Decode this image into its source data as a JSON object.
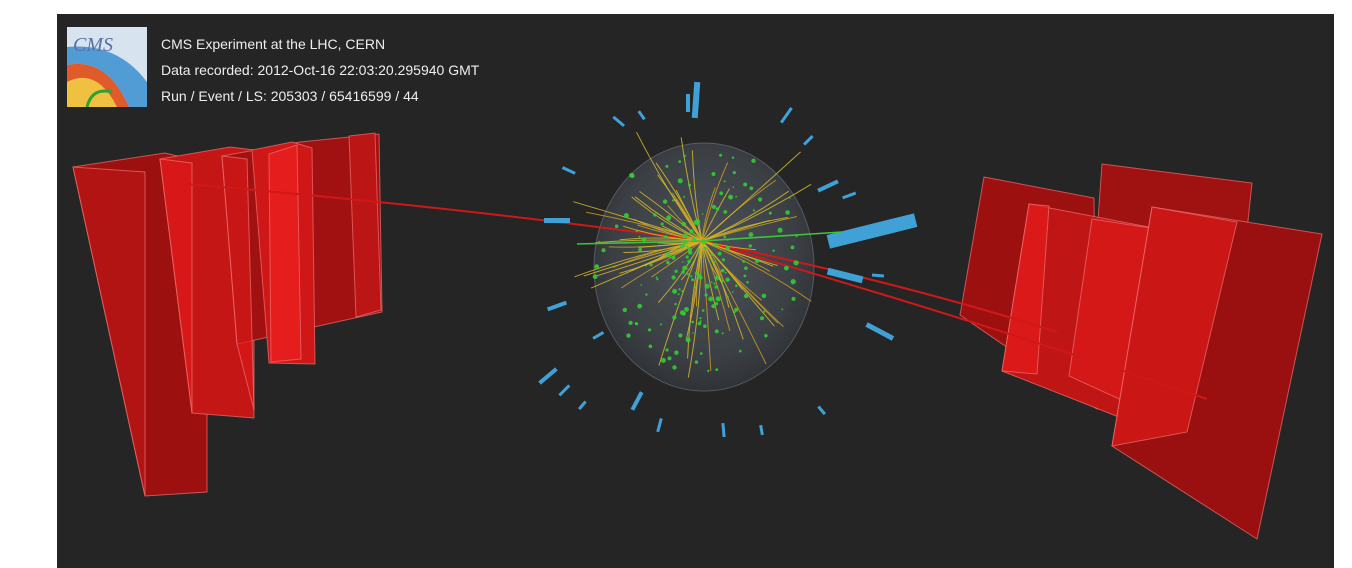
{
  "header": {
    "line1": "CMS Experiment at the LHC, CERN",
    "line2": "Data recorded: 2012-Oct-16 22:03:20.295940 GMT",
    "line3": "Run / Event / LS: 205303 / 65416599 / 44"
  },
  "logo": {
    "text": "CMS"
  },
  "colors": {
    "background": "#252525",
    "muon_chamber": "#b31212",
    "muon_chamber_bright": "#e81a1a",
    "muon_track": "#d01818",
    "calorimeter": "#3fa1d6",
    "tracker_hits": "#33cc33",
    "tracks": "#d4b82a",
    "tracker_volume": "#5a6470"
  }
}
